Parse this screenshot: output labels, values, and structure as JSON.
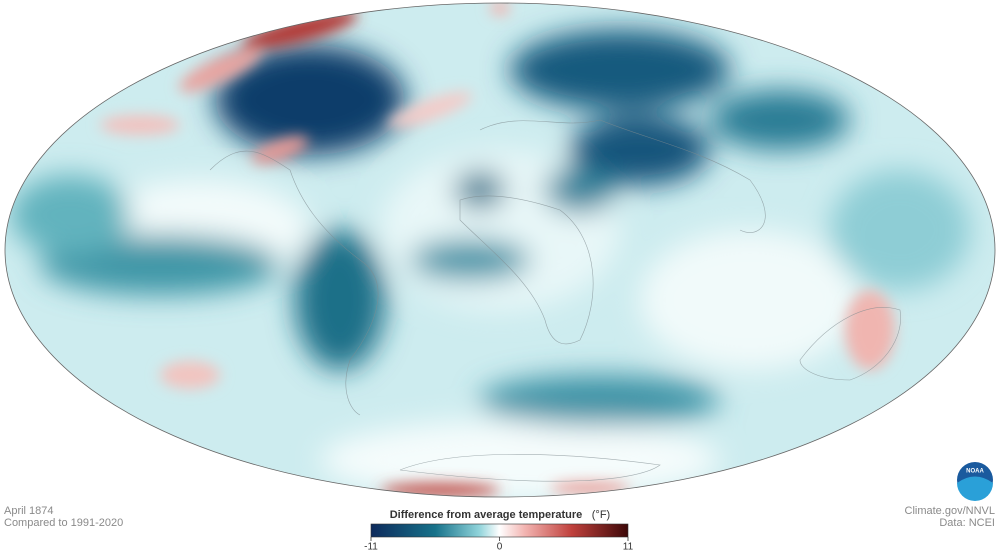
{
  "caption": {
    "date": "April 1874",
    "baseline": "Compared to 1991-2020"
  },
  "credit": {
    "site": "Climate.gov/NNVL",
    "data": "Data: NCEI"
  },
  "logo": "NOAA",
  "legend": {
    "title": "Difference from average temperature",
    "unit": "(°F)",
    "min": -11,
    "max": 11,
    "ticks": [
      -11,
      0,
      11
    ]
  }
}
